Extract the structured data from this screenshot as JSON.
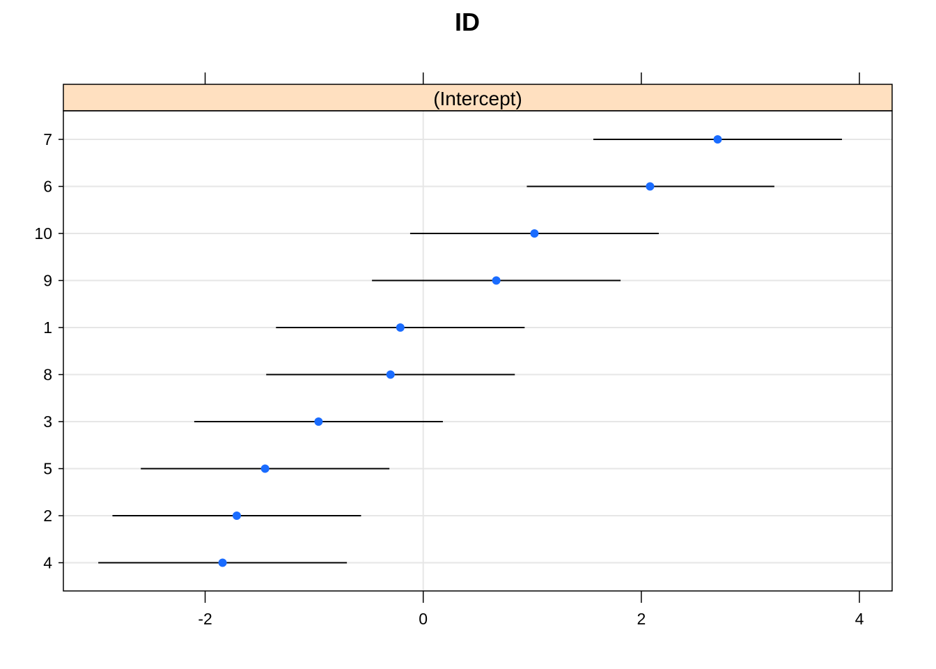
{
  "chart_data": {
    "type": "scatter",
    "subtype": "dotplot-with-intervals",
    "title": "ID",
    "panel_strip": "(Intercept)",
    "strip_color": "#ffe0c0",
    "point_color": "#1a6cff",
    "grid_color": "#e6e6e6",
    "xlabel": "",
    "ylabel": "",
    "xlim": [
      -3.3,
      4.3
    ],
    "x_ticks": [
      -2,
      0,
      2,
      4
    ],
    "x_tick_labels": [
      "-2",
      "0",
      "2",
      "4"
    ],
    "reference_line_x": 0,
    "categories": [
      "7",
      "6",
      "10",
      "9",
      "1",
      "8",
      "3",
      "5",
      "2",
      "4"
    ],
    "points": [
      {
        "label": "7",
        "estimate": 2.7,
        "lower": 1.56,
        "upper": 3.84
      },
      {
        "label": "6",
        "estimate": 2.08,
        "lower": 0.95,
        "upper": 3.22
      },
      {
        "label": "10",
        "estimate": 1.02,
        "lower": -0.12,
        "upper": 2.16
      },
      {
        "label": "9",
        "estimate": 0.67,
        "lower": -0.47,
        "upper": 1.81
      },
      {
        "label": "1",
        "estimate": -0.21,
        "lower": -1.35,
        "upper": 0.93
      },
      {
        "label": "8",
        "estimate": -0.3,
        "lower": -1.44,
        "upper": 0.84
      },
      {
        "label": "3",
        "estimate": -0.96,
        "lower": -2.1,
        "upper": 0.18
      },
      {
        "label": "5",
        "estimate": -1.45,
        "lower": -2.59,
        "upper": -0.31
      },
      {
        "label": "2",
        "estimate": -1.71,
        "lower": -2.85,
        "upper": -0.57
      },
      {
        "label": "4",
        "estimate": -1.84,
        "lower": -2.98,
        "upper": -0.7
      }
    ]
  }
}
